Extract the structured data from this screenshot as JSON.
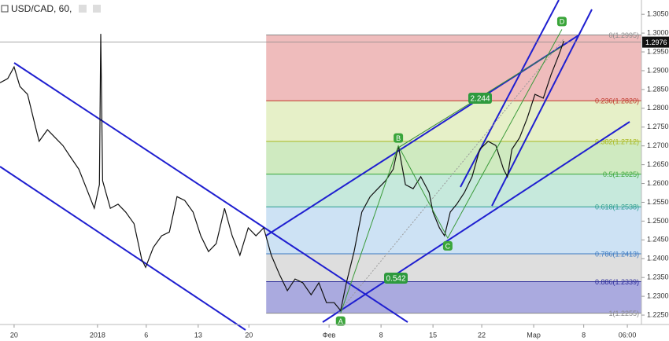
{
  "chart_data": {
    "type": "line",
    "title": "USD/CAD, 60,",
    "x": [
      0,
      1.2,
      2.2,
      3.1,
      4.3,
      5.5,
      6.1,
      7.4,
      8.6,
      9.8,
      11.0,
      12.3,
      13.5,
      14.7,
      15.5,
      15.7,
      16.0,
      17.2,
      18.4,
      19.6,
      20.9,
      22.1,
      22.7,
      23.9,
      25.2,
      26.4,
      27.6,
      28.8,
      30.1,
      31.3,
      32.5,
      33.7,
      35.0,
      36.2,
      37.4,
      38.7,
      39.9,
      41.1,
      42.3,
      43.6,
      44.8,
      46.0,
      47.2,
      48.5,
      49.7,
      50.9,
      52.1,
      53.1,
      54.0,
      55.2,
      56.4,
      57.7,
      58.9,
      60.1,
      61.3,
      62.1,
      63.2,
      64.4,
      65.6,
      66.9,
      67.5,
      68.5,
      69.3,
      70.2,
      71.2,
      72.4,
      73.6,
      74.8,
      76.1,
      77.3,
      78.5,
      79.1,
      79.8,
      81.0,
      82.2,
      83.4,
      84.7,
      85.9,
      87.1,
      87.9
    ],
    "series": [
      {
        "color": "#111111",
        "values": [
          1.2868,
          1.2879,
          1.291,
          1.2858,
          1.2837,
          1.2753,
          1.2712,
          1.2743,
          1.2722,
          1.2701,
          1.267,
          1.2638,
          1.2586,
          1.2534,
          1.2597,
          1.2998,
          1.2607,
          1.2534,
          1.2545,
          1.2524,
          1.2493,
          1.2398,
          1.2377,
          1.243,
          1.2461,
          1.2471,
          1.2565,
          1.2555,
          1.2524,
          1.2461,
          1.2419,
          1.244,
          1.2534,
          1.2461,
          1.2409,
          1.2482,
          1.2461,
          1.2482,
          1.2409,
          1.2357,
          1.2315,
          1.2346,
          1.2336,
          1.2304,
          1.2336,
          1.2283,
          1.2283,
          1.2262,
          1.2336,
          1.2419,
          1.2524,
          1.2565,
          1.2586,
          1.2607,
          1.2638,
          1.27,
          1.2597,
          1.2586,
          1.2618,
          1.2576,
          1.2524,
          1.2482,
          1.2461,
          1.2524,
          1.2545,
          1.2576,
          1.2618,
          1.2691,
          1.2712,
          1.2701,
          1.2638,
          1.2618,
          1.2691,
          1.2722,
          1.2774,
          1.2837,
          1.2827,
          1.2889,
          1.2941,
          1.2979
        ]
      }
    ],
    "xlim": [
      0,
      100
    ],
    "xticks": [
      {
        "value": 2.2,
        "label": "20"
      },
      {
        "value": 15.2,
        "label": "2018"
      },
      {
        "value": 22.8,
        "label": "6"
      },
      {
        "value": 30.9,
        "label": "13"
      },
      {
        "value": 38.8,
        "label": "20"
      },
      {
        "value": 51.3,
        "label": "Фев"
      },
      {
        "value": 59.4,
        "label": "8"
      },
      {
        "value": 67.5,
        "label": "15"
      },
      {
        "value": 75.1,
        "label": "22"
      },
      {
        "value": 83.2,
        "label": "Мар"
      },
      {
        "value": 91.0,
        "label": "8"
      },
      {
        "value": 97.8,
        "label": "06:00"
      }
    ],
    "ylim": [
      1.2225,
      1.3088
    ],
    "yticks": [
      {
        "value": 1.225,
        "label": "1.2250"
      },
      {
        "value": 1.23,
        "label": "1.2300"
      },
      {
        "value": 1.235,
        "label": "1.2350"
      },
      {
        "value": 1.24,
        "label": "1.2400"
      },
      {
        "value": 1.245,
        "label": "1.2450"
      },
      {
        "value": 1.25,
        "label": "1.2500"
      },
      {
        "value": 1.255,
        "label": "1.2550"
      },
      {
        "value": 1.26,
        "label": "1.2600"
      },
      {
        "value": 1.265,
        "label": "1.2650"
      },
      {
        "value": 1.27,
        "label": "1.2700"
      },
      {
        "value": 1.275,
        "label": "1.2750"
      },
      {
        "value": 1.28,
        "label": "1.2800"
      },
      {
        "value": 1.285,
        "label": "1.2850"
      },
      {
        "value": 1.29,
        "label": "1.2900"
      },
      {
        "value": 1.295,
        "label": "1.2950"
      },
      {
        "value": 1.3,
        "label": "1.3000"
      },
      {
        "value": 1.305,
        "label": "1.3050"
      }
    ],
    "last_price": 1.2976,
    "fib_start_x": 41.5,
    "fib_levels": [
      {
        "label": "0(1.2995)",
        "value": 1.2995,
        "color": "#888888",
        "fill": "#efbcbc"
      },
      {
        "label": "0.236(1.2820)",
        "value": 1.282,
        "color": "#c0392b",
        "fill": "#e6f0c8"
      },
      {
        "label": "0.382(1.2712)",
        "value": 1.2712,
        "color": "#a8b820",
        "fill": "#cfeac0"
      },
      {
        "label": "0.5(1.2625)",
        "value": 1.2625,
        "color": "#3aa73a",
        "fill": "#c6e9dc"
      },
      {
        "label": "0.618(1.2538)",
        "value": 1.2538,
        "color": "#2a9d8f",
        "fill": "#cde2f4"
      },
      {
        "label": "0.786(1.2413)",
        "value": 1.2413,
        "color": "#3a78c0",
        "fill": "#dedede"
      },
      {
        "label": "0.886(1.2339)",
        "value": 1.2339,
        "color": "#2c2c9a",
        "fill": "#aaaadf"
      },
      {
        "label": "1(1.2255)",
        "value": 1.2255,
        "color": "#888888",
        "fill": "#aaaadf"
      }
    ],
    "waves": [
      {
        "label": "A",
        "x": 53.1,
        "value": 1.2255
      },
      {
        "label": "B",
        "x": 62.1,
        "value": 1.27
      },
      {
        "label": "C",
        "x": 69.8,
        "value": 1.2455
      },
      {
        "label": "D",
        "x": 87.6,
        "value": 1.301
      }
    ],
    "ratio_labels": [
      "2.244",
      "0.542"
    ]
  }
}
